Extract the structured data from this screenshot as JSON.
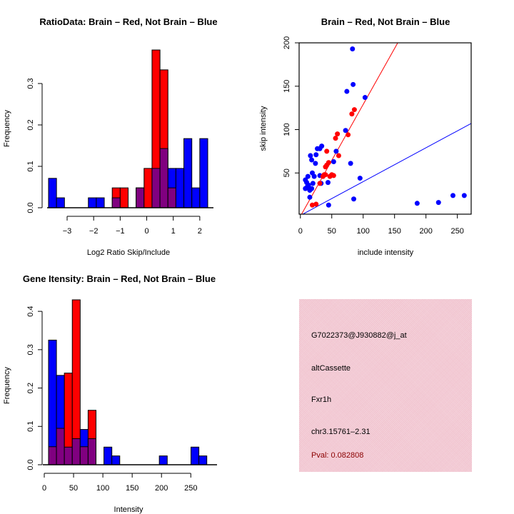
{
  "chart_data": [
    {
      "type": "bar",
      "id": "ratio-hist",
      "title": "RatioData: Brain – Red, Not Brain – Blue",
      "xlabel": "Log2 Ratio Skip/Include",
      "ylabel": "Frequency",
      "xlim": [
        -3.7,
        2.3
      ],
      "ylim": [
        0,
        0.4
      ],
      "xticks": [
        -3,
        -2,
        -1,
        0,
        1,
        2
      ],
      "xtick_labels": [
        "−3",
        "−2",
        "−1",
        "0",
        "1",
        "2"
      ],
      "yticks": [
        0.0,
        0.1,
        0.2,
        0.3
      ],
      "ytick_labels": [
        "0.0",
        "0.1",
        "0.2",
        "0.3"
      ],
      "bin_start": -3.7,
      "bin_width": 0.3,
      "series": [
        {
          "name": "Brain",
          "color": "#ff0000",
          "values": [
            0,
            0,
            0,
            0,
            0,
            0,
            0,
            0,
            0.048,
            0.048,
            0,
            0.048,
            0.095,
            0.381,
            0.333,
            0.048,
            0,
            0,
            0,
            0
          ]
        },
        {
          "name": "Not Brain",
          "color": "#0000ff",
          "values": [
            0.071,
            0.024,
            0,
            0,
            0,
            0.024,
            0.024,
            0,
            0.024,
            0,
            0,
            0.048,
            0,
            0.095,
            0.143,
            0.095,
            0.095,
            0.167,
            0.048,
            0.167
          ]
        }
      ],
      "overlap_color": "#800080"
    },
    {
      "type": "scatter",
      "id": "intensity-scatter",
      "title": "Brain – Red, Not Brain – Blue",
      "xlabel": "include intensity",
      "ylabel": "skip intensity",
      "xlim": [
        -2,
        272
      ],
      "ylim": [
        2.5,
        200
      ],
      "xticks": [
        0,
        50,
        100,
        150,
        200,
        250
      ],
      "yticks": [
        50,
        100,
        150,
        200
      ],
      "series": [
        {
          "name": "Brain",
          "color": "#ff0000",
          "points": [
            [
              86,
              123
            ],
            [
              82,
              118
            ],
            [
              59,
              95
            ],
            [
              76,
              94
            ],
            [
              56,
              90
            ],
            [
              42,
              75
            ],
            [
              61,
              70
            ],
            [
              42,
              59
            ],
            [
              45,
              62
            ],
            [
              40,
              57
            ],
            [
              36,
              46
            ],
            [
              40,
              48
            ],
            [
              50,
              48
            ],
            [
              53,
              47
            ],
            [
              31,
              38
            ],
            [
              19,
              13
            ],
            [
              25,
              14
            ],
            [
              38,
              48
            ],
            [
              47,
              46
            ]
          ]
        },
        {
          "name": "Not Brain",
          "color": "#0000ff",
          "points": [
            [
              83,
              193
            ],
            [
              84,
              152
            ],
            [
              74,
              144
            ],
            [
              103,
              137
            ],
            [
              72,
              99
            ],
            [
              34,
              81
            ],
            [
              31,
              78
            ],
            [
              27,
              78
            ],
            [
              25,
              71
            ],
            [
              16,
              70
            ],
            [
              18,
              65
            ],
            [
              57,
              75
            ],
            [
              24,
              61
            ],
            [
              53,
              63
            ],
            [
              80,
              61
            ],
            [
              19,
              50
            ],
            [
              12,
              46
            ],
            [
              10,
              39
            ],
            [
              11,
              34
            ],
            [
              15,
              30
            ],
            [
              20,
              38
            ],
            [
              15,
              22
            ],
            [
              33,
              38
            ],
            [
              44,
              39
            ],
            [
              31,
              47
            ],
            [
              45,
              13
            ],
            [
              85,
              20
            ],
            [
              95,
              44
            ],
            [
              186,
              15
            ],
            [
              220,
              16
            ],
            [
              243,
              24
            ],
            [
              261,
              24
            ],
            [
              8,
              42
            ],
            [
              13,
              36
            ],
            [
              18,
              32
            ],
            [
              8,
              32
            ],
            [
              22,
              46
            ]
          ]
        }
      ],
      "lines": [
        {
          "name": "Brain fit",
          "color": "#ff0000",
          "slope": 1.29,
          "intercept": 0
        },
        {
          "name": "Not Brain fit",
          "color": "#0000ff",
          "slope": 0.39,
          "intercept": 1
        }
      ]
    },
    {
      "type": "bar",
      "id": "gene-intensity-hist",
      "title": "Gene Itensity: Brain – Red, Not Brain – Blue",
      "xlabel": "Intensity",
      "ylabel": "Frequency",
      "xlim": [
        0,
        285
      ],
      "ylim": [
        0,
        0.43
      ],
      "xticks": [
        0,
        50,
        100,
        150,
        200,
        250
      ],
      "xtick_labels": [
        "0",
        "50",
        "100",
        "150",
        "200",
        "250"
      ],
      "yticks": [
        0.0,
        0.1,
        0.2,
        0.3,
        0.4
      ],
      "ytick_labels": [
        "0.0",
        "0.1",
        "0.2",
        "0.3",
        "0.4"
      ],
      "bin_start": 7.3,
      "bin_width": 13.5,
      "series": [
        {
          "name": "Brain",
          "color": "#ff0000",
          "values": [
            0.047,
            0.095,
            0.239,
            0.43,
            0.047,
            0.142,
            0,
            0,
            0,
            0,
            0,
            0,
            0,
            0,
            0,
            0,
            0,
            0,
            0,
            0
          ]
        },
        {
          "name": "Not Brain",
          "color": "#0000ff",
          "values": [
            0.325,
            0.233,
            0.046,
            0.068,
            0.092,
            0.068,
            0,
            0.046,
            0.023,
            0,
            0,
            0,
            0,
            0,
            0.023,
            0,
            0,
            0,
            0.046,
            0.023
          ]
        }
      ],
      "overlap_color": "#800080"
    }
  ],
  "info_panel": {
    "probe_id": "G7022373@J930882@j_at",
    "event_type": "altCassette",
    "gene": "Fxr1h",
    "location": "chr3.15761–2.31",
    "pval": "Pval: 0.082808",
    "background_color": "#f0c0cc",
    "pval_color": "#8b0000"
  }
}
